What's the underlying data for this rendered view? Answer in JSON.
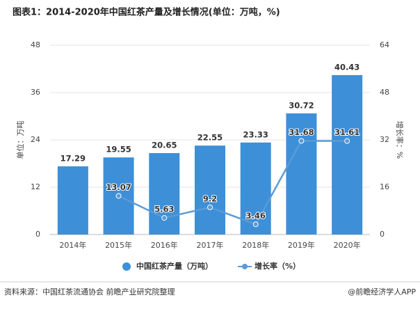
{
  "chart_data": {
    "type": "bar",
    "title": "图表1：2014-2020年中国红茶产量及增长情况(单位：万吨，%)",
    "ylabel": "单位：万吨",
    "y2label": "增长率：%",
    "categories": [
      "2014年",
      "2015年",
      "2016年",
      "2017年",
      "2018年",
      "2019年",
      "2020年"
    ],
    "series": [
      {
        "name": "中国红茶产量（万吨）",
        "type": "bar",
        "color": "#3d8fd8",
        "values": [
          17.29,
          19.55,
          20.65,
          22.55,
          23.33,
          30.72,
          40.43
        ]
      },
      {
        "name": "增长率（%）",
        "type": "line",
        "axis": "y2",
        "color": "#5b9bd5",
        "values": [
          null,
          13.07,
          5.63,
          9.2,
          3.46,
          31.68,
          31.61
        ]
      }
    ],
    "ylim": [
      0,
      48
    ],
    "yticks": [
      0,
      12,
      24,
      36,
      48
    ],
    "y2lim": [
      0,
      64
    ],
    "y2ticks": [
      0,
      16,
      32,
      48,
      64
    ],
    "grid": true,
    "source": "资料来源：中国红茶流通协会 前瞻产业研究院整理",
    "credit": "@前瞻经济学人APP"
  }
}
